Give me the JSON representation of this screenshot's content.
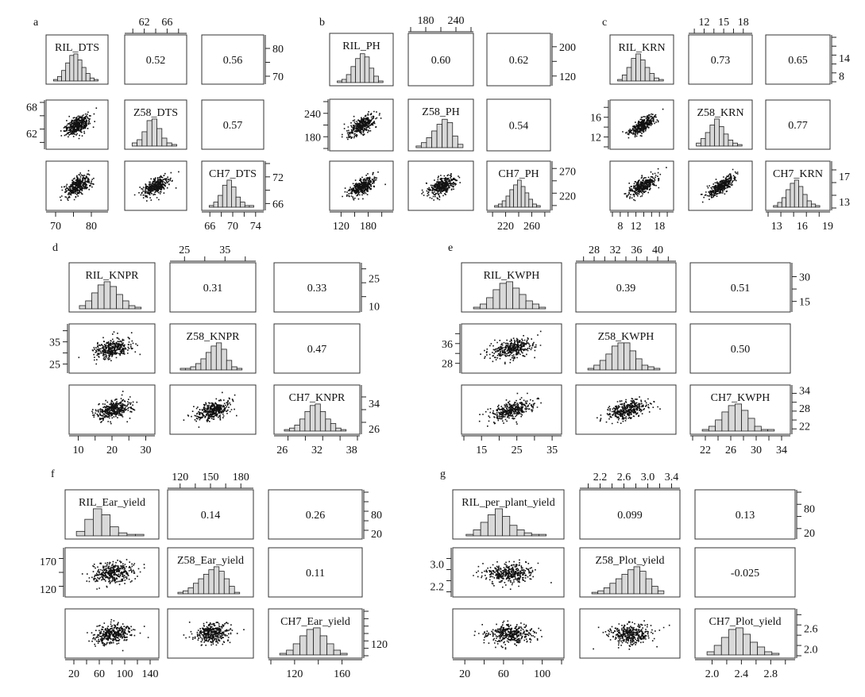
{
  "chart_data": [
    {
      "panel": "a",
      "type": "scatter-matrix",
      "diag": [
        "RIL_DTS",
        "Z58_DTS",
        "CH7_DTS"
      ],
      "corr": {
        "0_1": "0.52",
        "0_2": "0.56",
        "1_2": "0.57"
      },
      "ranges": [
        [
          68,
          84
        ],
        [
          59,
          69
        ],
        [
          65,
          75
        ]
      ],
      "ticks": {
        "top1": [
          "62",
          "66"
        ],
        "right0": [
          "70",
          "80"
        ],
        "left1": [
          "62",
          "68"
        ],
        "bottom0": [
          "70",
          "80"
        ],
        "right2": [
          "66",
          "72"
        ],
        "bottom2": [
          "66",
          "70",
          "74"
        ]
      },
      "hist": [
        [
          1,
          3,
          7,
          12,
          17,
          18,
          14,
          9,
          5,
          2,
          1
        ],
        [
          2,
          4,
          9,
          16,
          17,
          11,
          5,
          2,
          1
        ],
        [
          1,
          3,
          7,
          13,
          16,
          12,
          6,
          3,
          1,
          1
        ]
      ]
    },
    {
      "panel": "b",
      "type": "scatter-matrix",
      "diag": [
        "RIL_PH",
        "Z58_PH",
        "CH7_PH"
      ],
      "corr": {
        "0_1": "0.60",
        "0_2": "0.62",
        "1_2": "0.54"
      },
      "ranges": [
        [
          100,
          230
        ],
        [
          150,
          270
        ],
        [
          195,
          285
        ]
      ],
      "ticks": {
        "top1": [
          "180",
          "240"
        ],
        "right0": [
          "120",
          "200"
        ],
        "left1": [
          "180",
          "240"
        ],
        "bottom0": [
          "120",
          "180"
        ],
        "right2": [
          "220",
          "270"
        ],
        "bottom2": [
          "220",
          "260"
        ]
      },
      "hist": [
        [
          1,
          2,
          5,
          10,
          15,
          18,
          16,
          9,
          4,
          1
        ],
        [
          1,
          3,
          6,
          10,
          14,
          17,
          15,
          7,
          2
        ],
        [
          1,
          2,
          4,
          7,
          11,
          14,
          17,
          13,
          9,
          5,
          2,
          1
        ]
      ]
    },
    {
      "panel": "c",
      "type": "scatter-matrix",
      "diag": [
        "RIL_KRN",
        "Z58_KRN",
        "CH7_KRN"
      ],
      "corr": {
        "0_1": "0.73",
        "0_2": "0.65",
        "1_2": "0.77"
      },
      "ranges": [
        [
          6,
          21
        ],
        [
          10,
          19
        ],
        [
          12,
          19
        ]
      ],
      "ticks": {
        "top1": [
          "12",
          "15",
          "18"
        ],
        "right0": [
          "8",
          "14"
        ],
        "left1": [
          "12",
          "16"
        ],
        "bottom0": [
          "8",
          "12",
          "18"
        ],
        "right2": [
          "13",
          "17"
        ],
        "bottom2": [
          "13",
          "16",
          "19"
        ]
      },
      "hist": [
        [
          1,
          4,
          9,
          15,
          18,
          14,
          9,
          5,
          2,
          1
        ],
        [
          2,
          5,
          9,
          14,
          18,
          13,
          8,
          4,
          2,
          1
        ],
        [
          1,
          3,
          6,
          11,
          15,
          17,
          13,
          8,
          4,
          2,
          1
        ]
      ]
    },
    {
      "panel": "d",
      "type": "scatter-matrix",
      "diag": [
        "RIL_KNPR",
        "Z58_KNPR",
        "CH7_KNPR"
      ],
      "corr": {
        "0_1": "0.31",
        "0_2": "0.33",
        "1_2": "0.47"
      },
      "ranges": [
        [
          8,
          32
        ],
        [
          22,
          42
        ],
        [
          25,
          39
        ]
      ],
      "ticks": {
        "top1": [
          "25",
          "35"
        ],
        "right0": [
          "10",
          "25"
        ],
        "left1": [
          "25",
          "35"
        ],
        "bottom0": [
          "10",
          "20",
          "30"
        ],
        "right2": [
          "26",
          "34"
        ],
        "bottom2": [
          "26",
          "32",
          "38"
        ]
      },
      "hist": [
        [
          2,
          5,
          10,
          15,
          17,
          14,
          9,
          5,
          2,
          1
        ],
        [
          1,
          1,
          2,
          4,
          7,
          11,
          15,
          17,
          13,
          6,
          2,
          1
        ],
        [
          1,
          2,
          4,
          8,
          13,
          17,
          18,
          13,
          8,
          5,
          2,
          1
        ]
      ]
    },
    {
      "panel": "e",
      "type": "scatter-matrix",
      "diag": [
        "RIL_KWPH",
        "Z58_KWPH",
        "CH7_KWPH"
      ],
      "corr": {
        "0_1": "0.39",
        "0_2": "0.51",
        "1_2": "0.50"
      },
      "ranges": [
        [
          10,
          37
        ],
        [
          25,
          43
        ],
        [
          20,
          35
        ]
      ],
      "ticks": {
        "top1": [
          "28",
          "32",
          "36",
          "40"
        ],
        "right0": [
          "15",
          "30"
        ],
        "left1": [
          "28",
          "36"
        ],
        "bottom0": [
          "15",
          "25",
          "35"
        ],
        "right2": [
          "22",
          "28",
          "34"
        ],
        "bottom2": [
          "22",
          "26",
          "30",
          "34"
        ]
      },
      "hist": [
        [
          1,
          3,
          7,
          12,
          16,
          17,
          13,
          9,
          5,
          3,
          1
        ],
        [
          1,
          3,
          6,
          10,
          15,
          17,
          17,
          12,
          7,
          3,
          2,
          1
        ],
        [
          1,
          3,
          7,
          12,
          16,
          17,
          13,
          8,
          3,
          1,
          1
        ]
      ]
    },
    {
      "panel": "f",
      "type": "scatter-matrix",
      "diag": [
        "RIL_Ear_yield",
        "Z58_Ear_yield",
        "CH7_Ear_yield"
      ],
      "corr": {
        "0_1": "0.14",
        "0_2": "0.26",
        "1_2": "0.11"
      },
      "ranges": [
        [
          10,
          150
        ],
        [
          110,
          190
        ],
        [
          100,
          175
        ]
      ],
      "ticks": {
        "top1": [
          "120",
          "150",
          "180"
        ],
        "right0": [
          "20",
          "80"
        ],
        "left1": [
          "120",
          "170"
        ],
        "bottom0": [
          "20",
          "60",
          "100",
          "140"
        ],
        "right2": [
          "120"
        ],
        "bottom2": [
          "120",
          "160"
        ]
      },
      "hist": [
        [
          3,
          11,
          18,
          14,
          6,
          2,
          1,
          1
        ],
        [
          1,
          2,
          4,
          7,
          10,
          13,
          16,
          18,
          15,
          10,
          5,
          1
        ],
        [
          1,
          3,
          7,
          12,
          16,
          17,
          12,
          7,
          3,
          1
        ]
      ]
    },
    {
      "panel": "g",
      "type": "scatter-matrix",
      "diag": [
        "RIL_per_plant_yield",
        "Z58_Plot_yield",
        "CH7_Plot_yield"
      ],
      "corr": {
        "0_1": "0.099",
        "0_2": "0.13",
        "1_2": "-0.025"
      },
      "ranges": [
        [
          10,
          120
        ],
        [
          1.9,
          3.5
        ],
        [
          1.8,
          3.1
        ]
      ],
      "ticks": {
        "top1": [
          "2.2",
          "2.6",
          "3.0",
          "3.4"
        ],
        "right0": [
          "20",
          "80"
        ],
        "left1": [
          "2.2",
          "3.0"
        ],
        "bottom0": [
          "20",
          "60",
          "100"
        ],
        "right2": [
          "2.0",
          "2.6"
        ],
        "bottom2": [
          "2.0",
          "2.4",
          "2.8"
        ]
      },
      "hist": [
        [
          1,
          4,
          9,
          14,
          18,
          13,
          7,
          4,
          2,
          1,
          1
        ],
        [
          1,
          2,
          4,
          7,
          10,
          13,
          16,
          18,
          15,
          10,
          5,
          2
        ],
        [
          2,
          6,
          11,
          16,
          17,
          13,
          8,
          5,
          2,
          1
        ]
      ]
    }
  ]
}
